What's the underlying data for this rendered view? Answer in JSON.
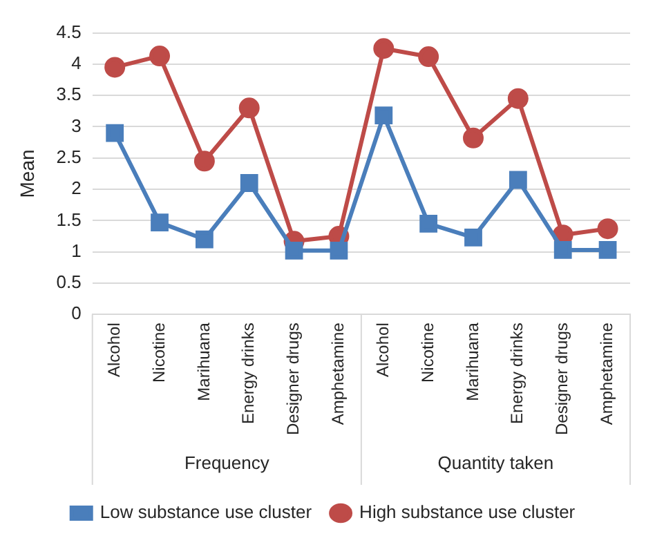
{
  "chart_data": {
    "type": "line",
    "ylabel": "Mean",
    "categories": [
      "Alcohol",
      "Nicotine",
      "Marihuana",
      "Energy drinks",
      "Designer drugs",
      "Amphetamine",
      "Alcohol",
      "Nicotine",
      "Marihuana",
      "Energy drinks",
      "Designer drugs",
      "Amphetamine"
    ],
    "series": [
      {
        "name": "Low substance use cluster",
        "color": "#4a7ebb",
        "marker": "square",
        "values": [
          2.9,
          1.47,
          1.2,
          2.1,
          1.02,
          1.02,
          3.18,
          1.45,
          1.23,
          2.15,
          1.03,
          1.03
        ]
      },
      {
        "name": "High substance use cluster",
        "color": "#be4b48",
        "marker": "circle",
        "values": [
          3.95,
          4.13,
          2.45,
          3.3,
          1.17,
          1.25,
          4.25,
          4.12,
          2.82,
          3.45,
          1.27,
          1.37
        ]
      }
    ],
    "annotations": [
      "Frequency",
      "Quantity taken"
    ],
    "ylim": [
      0,
      4.5
    ],
    "yticks": [
      0,
      0.5,
      1,
      1.5,
      2,
      2.5,
      3,
      3.5,
      4,
      4.5
    ],
    "grid": "y",
    "legend": "bottom"
  }
}
